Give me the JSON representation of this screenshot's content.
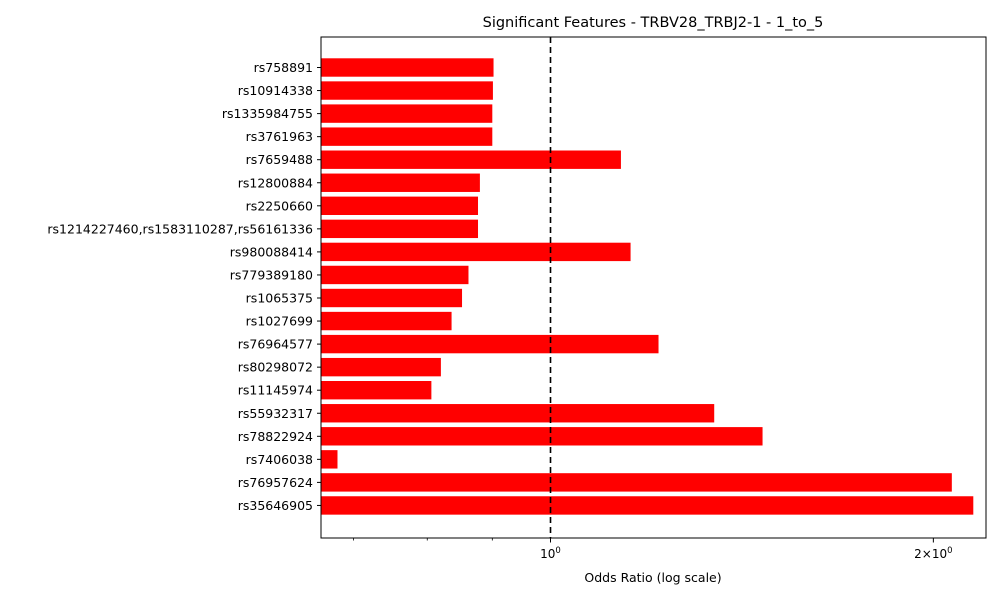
{
  "chart_data": {
    "type": "bar",
    "orientation": "horizontal",
    "title": "Significant Features - TRBV28_TRBJ2-1 - 1_to_5",
    "xlabel": "Odds Ratio (log scale)",
    "ylabel": "",
    "x_scale": "log",
    "xlim": [
      0.66,
      2.2
    ],
    "reference_line": 1.0,
    "bar_color": "#ff0000",
    "grid": false,
    "x_ticks": [
      {
        "value": 1.0,
        "label_base": "10",
        "label_exp": "0"
      },
      {
        "value": 2.0,
        "label_base": "2×10",
        "label_exp": "0"
      }
    ],
    "x_minor_ticks": [
      0.7,
      0.8,
      0.9
    ],
    "categories": [
      "rs758891",
      "rs10914338",
      "rs1335984755",
      "rs3761963",
      "rs7659488",
      "rs12800884",
      "rs2250660",
      "rs1214227460,rs1583110287,rs56161336",
      "rs980088414",
      "rs779389180",
      "rs1065375",
      "rs1027699",
      "rs76964577",
      "rs80298072",
      "rs11145974",
      "rs55932317",
      "rs78822924",
      "rs7406038",
      "rs76957624",
      "rs35646905"
    ],
    "values": [
      0.902,
      0.901,
      0.9,
      0.9,
      1.136,
      0.88,
      0.877,
      0.877,
      1.156,
      0.862,
      0.852,
      0.836,
      1.216,
      0.82,
      0.806,
      1.345,
      1.468,
      0.68,
      2.068,
      2.15
    ]
  }
}
